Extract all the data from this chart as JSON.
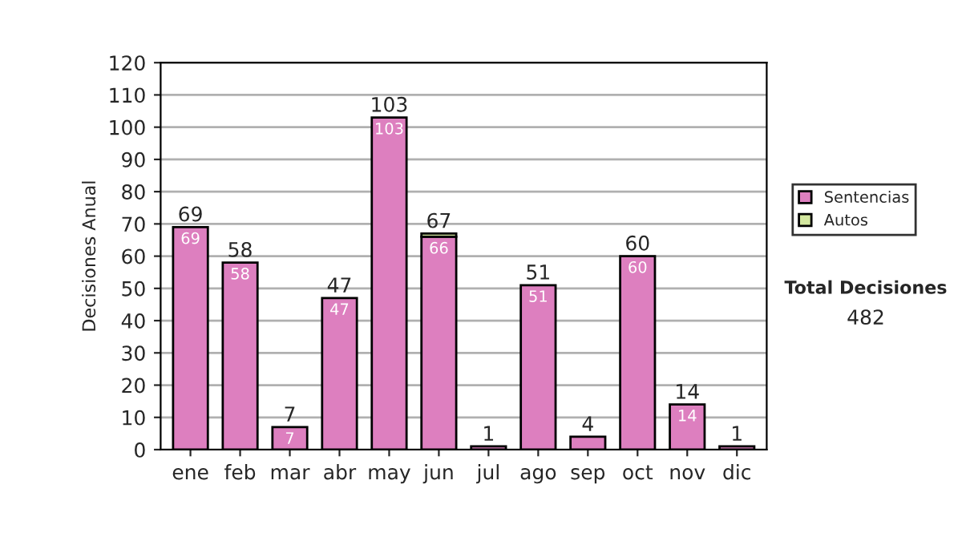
{
  "chart_data": {
    "type": "bar",
    "stacked": true,
    "ylabel": "Decisiones Anual",
    "categories": [
      "ene",
      "feb",
      "mar",
      "abr",
      "may",
      "jun",
      "jul",
      "ago",
      "sep",
      "oct",
      "nov",
      "dic"
    ],
    "series": [
      {
        "name": "Sentencias",
        "color": "#dd7fbf",
        "values": [
          69,
          58,
          7,
          47,
          103,
          66,
          1,
          51,
          4,
          60,
          14,
          1
        ],
        "value_labels": [
          "69",
          "58",
          "7",
          "47",
          "103",
          "66",
          null,
          "51",
          null,
          "60",
          "14",
          null
        ]
      },
      {
        "name": "Autos",
        "color": "#d4e8a0",
        "values": [
          null,
          null,
          null,
          null,
          null,
          1,
          null,
          null,
          null,
          null,
          null,
          null
        ]
      }
    ],
    "totals": [
      "69",
      "58",
      "7",
      "47",
      "103",
      "67",
      "1",
      "51",
      "4",
      "60",
      "14",
      "1"
    ],
    "ylim": [
      0,
      120
    ],
    "yticks": [
      0,
      10,
      20,
      30,
      40,
      50,
      60,
      70,
      80,
      90,
      100,
      110,
      120
    ],
    "grid": "y",
    "legend": "right",
    "annotations": [
      "Total Decisiones",
      "482"
    ]
  }
}
